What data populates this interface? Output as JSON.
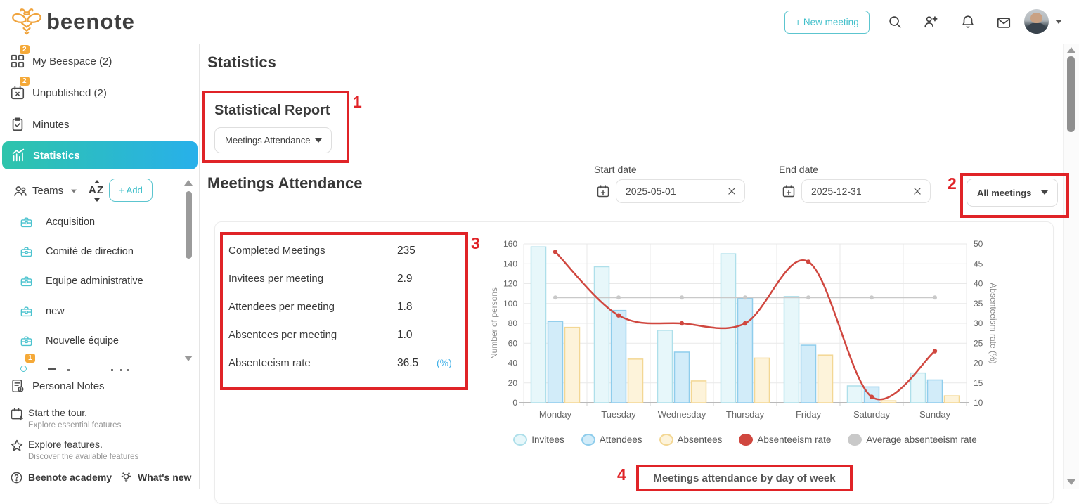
{
  "brand": {
    "name": "beenote",
    "accent": "#3fbfca",
    "logo_orange": "#f0a43e",
    "badge_orange": "#f5a938",
    "annotation_red": "#e02327"
  },
  "header": {
    "new_meeting": "+ New meeting"
  },
  "sidebar": {
    "items": [
      {
        "label": "My Beespace  (2)",
        "badge": "2"
      },
      {
        "label": "Unpublished  (2)",
        "badge": "2"
      },
      {
        "label": "Minutes"
      },
      {
        "label": "Statistics"
      }
    ],
    "teams_header": {
      "label": "Teams",
      "sort_label": "AZ",
      "add_label": "+ Add"
    },
    "teams": [
      "Acquisition",
      "Comité de direction",
      "Equipe administrative",
      "new",
      "Nouvelle équipe"
    ],
    "partial_team_badge": "1",
    "personal_notes": "Personal Notes",
    "tour_title": "Start the tour.",
    "tour_subtitle": "Explore essential features",
    "explore_title": "Explore features.",
    "explore_subtitle": "Discover the available features",
    "academy": "Beenote academy",
    "whats_new": "What's new"
  },
  "main": {
    "page_title": "Statistics",
    "report_title": "Statistical Report",
    "report_dropdown": "Meetings Attendance",
    "section_title": "Meetings Attendance",
    "filters": {
      "start_label": "Start date",
      "start_value": "2025-05-01",
      "end_label": "End date",
      "end_value": "2025-12-31",
      "scope_value": "All meetings"
    },
    "stats": [
      {
        "label": "Completed Meetings",
        "value": "235"
      },
      {
        "label": "Invitees per meeting",
        "value": "2.9"
      },
      {
        "label": "Attendees per meeting",
        "value": "1.8"
      },
      {
        "label": "Absentees per meeting",
        "value": "1.0"
      },
      {
        "label": "Absenteeism rate",
        "value": "36.5",
        "unit": "(%)"
      }
    ],
    "annotations": {
      "n1": "1",
      "n2": "2",
      "n3": "3",
      "n4": "4"
    }
  },
  "chart_data": {
    "type": "bar",
    "title": "Meetings attendance by day of week",
    "categories": [
      "Monday",
      "Tuesday",
      "Wednesday",
      "Thursday",
      "Friday",
      "Saturday",
      "Sunday"
    ],
    "series": [
      {
        "name": "Invitees",
        "type": "bar",
        "axis": "left",
        "values": [
          157,
          137,
          73,
          150,
          107,
          17,
          30
        ],
        "fill": "#e7f7fa",
        "border": "#aedfea"
      },
      {
        "name": "Attendees",
        "type": "bar",
        "axis": "left",
        "values": [
          82,
          93,
          51,
          105,
          58,
          16,
          23
        ],
        "fill": "#d2ecf9",
        "border": "#8fcdec"
      },
      {
        "name": "Absentees",
        "type": "bar",
        "axis": "left",
        "values": [
          76,
          44,
          22,
          45,
          48,
          2,
          7
        ],
        "fill": "#fdf3da",
        "border": "#f3d794"
      },
      {
        "name": "Absenteeism rate",
        "type": "line",
        "axis": "right",
        "values": [
          48,
          32,
          30,
          30,
          45.5,
          11.5,
          23
        ],
        "color": "#d0473f"
      },
      {
        "name": "Average absenteeism rate",
        "type": "line",
        "axis": "right",
        "values": [
          36.5,
          36.5,
          36.5,
          36.5,
          36.5,
          36.5,
          36.5
        ],
        "color": "#c9c9c9"
      }
    ],
    "ylabel_left": "Number of persons",
    "ylabel_right": "Absenteeism rate (%)",
    "ylim_left": [
      0,
      160
    ],
    "yticks_left": [
      0,
      20,
      40,
      60,
      80,
      100,
      120,
      140,
      160
    ],
    "ylim_right": [
      10,
      50
    ],
    "yticks_right": [
      10,
      15,
      20,
      25,
      30,
      35,
      40,
      45,
      50
    ],
    "grid": true,
    "legend_position": "bottom"
  }
}
